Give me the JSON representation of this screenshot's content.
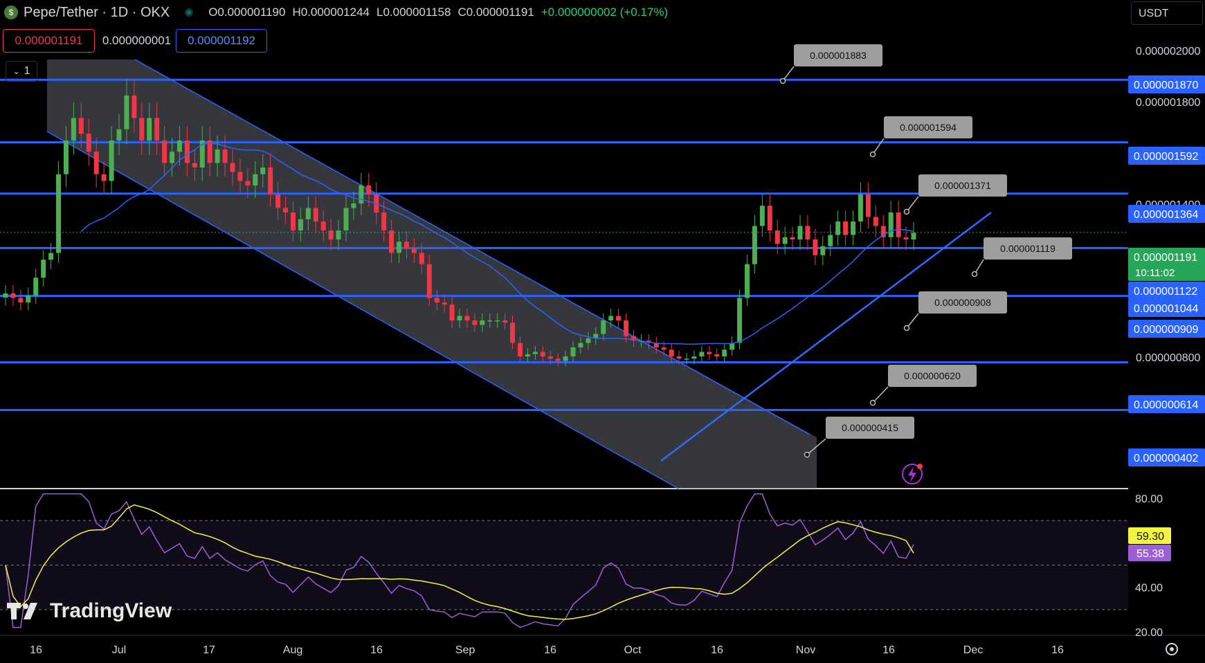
{
  "header": {
    "symbol_title": "Pepe/Tether · 1D · OKX",
    "coin_icon": "pepe-coin-icon",
    "open": "O0.000001190",
    "high": "H0.000001244",
    "low": "L0.000001158",
    "close": "C0.000001191",
    "change": "+0.000000002 (+0.17%)"
  },
  "trade": {
    "sell_price": "0.000001191",
    "spread": "0.000000001",
    "buy_price": "0.000001192"
  },
  "interval_toggle": "1",
  "currency_select": "USDT",
  "price_axis": {
    "ticks": [
      "0.000002000",
      "0.000001800",
      "0.000001400",
      "0.000000800"
    ],
    "level_badges": [
      "0.000001870",
      "0.000001592",
      "0.000001364",
      "0.000001122",
      "0.000001044",
      "0.000000909",
      "0.000000614",
      "0.000000402"
    ],
    "last_price": "0.000001191",
    "countdown": "10:11:02"
  },
  "callouts": [
    "0.000001883",
    "0.000001594",
    "0.000001371",
    "0.000001119",
    "0.000000908",
    "0.000000620",
    "0.000000415"
  ],
  "rsi_axis": {
    "ticks": [
      "80.00",
      "40.00",
      "20.00"
    ],
    "rsi_value": "59.30",
    "rsi_ma_value": "55.38"
  },
  "time_axis": [
    "16",
    "Jul",
    "17",
    "Aug",
    "16",
    "Sep",
    "16",
    "Oct",
    "16",
    "Nov",
    "16",
    "Dec",
    "16"
  ],
  "brand": "TradingView",
  "colors": {
    "bull": "#26a69a",
    "bull_candle": "#4caf50",
    "bear": "#f23645",
    "level_line": "#2962ff",
    "ma_line": "#2962ff",
    "rsi_line": "#9c5fd6",
    "rsi_ma_line": "#f4f442",
    "channel_fill": "#787b86",
    "callout_bg": "#9e9e9e"
  },
  "chart_data": {
    "type": "candlestick",
    "timeframe": "1D",
    "date_range": [
      "2024-06-04",
      "2024-11-20"
    ],
    "ylim": [
      3.5e-07,
      2.1e-06
    ],
    "horizontal_levels": [
      1.87e-06,
      1.592e-06,
      1.364e-06,
      1.122e-06,
      9.09e-07,
      6.14e-07,
      4.02e-07
    ],
    "descending_channel": true,
    "ascending_trendline": true,
    "closes": [
      9.2e-07,
      9e-07,
      8.8e-07,
      9.1e-07,
      9.9e-07,
      1.07e-06,
      1.1e-06,
      1.45e-06,
      1.6e-06,
      1.7e-06,
      1.63e-06,
      1.55e-06,
      1.45e-06,
      1.42e-06,
      1.6e-06,
      1.65e-06,
      1.8e-06,
      1.7e-06,
      1.6e-06,
      1.7e-06,
      1.6e-06,
      1.5e-06,
      1.55e-06,
      1.6e-06,
      1.5e-06,
      1.48e-06,
      1.6e-06,
      1.5e-06,
      1.56e-06,
      1.5e-06,
      1.46e-06,
      1.42e-06,
      1.4e-06,
      1.45e-06,
      1.48e-06,
      1.36e-06,
      1.3e-06,
      1.28e-06,
      1.2e-06,
      1.25e-06,
      1.3e-06,
      1.24e-06,
      1.2e-06,
      1.16e-06,
      1.2e-06,
      1.3e-06,
      1.32e-06,
      1.4e-06,
      1.36e-06,
      1.28e-06,
      1.2e-06,
      1.1e-06,
      1.15e-06,
      1.12e-06,
      1.1e-06,
      1.05e-06,
      9e-07,
      8.8e-07,
      8.7e-07,
      8e-07,
      8.2e-07,
      8e-07,
      7.8e-07,
      8e-07,
      8e-07,
      8e-07,
      7.9e-07,
      7e-07,
      6.4e-07,
      6.5e-07,
      6.6e-07,
      6.4e-07,
      6.3e-07,
      6.2e-07,
      6.4e-07,
      6.8e-07,
      7e-07,
      7.2e-07,
      7.4e-07,
      8e-07,
      8.2e-07,
      8e-07,
      7.3e-07,
      7.1e-07,
      7.1e-07,
      7e-07,
      6.8e-07,
      6.7e-07,
      6.4e-07,
      6.3e-07,
      6.3e-07,
      6.4e-07,
      6.6e-07,
      6.5e-07,
      6.4e-07,
      6.7e-07,
      7e-07,
      9e-07,
      1.05e-06,
      1.22e-06,
      1.31e-06,
      1.2e-06,
      1.14e-06,
      1.17e-06,
      1.16e-06,
      1.22e-06,
      1.16e-06,
      1.09e-06,
      1.13e-06,
      1.18e-06,
      1.24e-06,
      1.18e-06,
      1.24e-06,
      1.36e-06,
      1.26e-06,
      1.22e-06,
      1.17e-06,
      1.28e-06,
      1.17e-06,
      1.16e-06,
      1.19e-06
    ],
    "rsi": {
      "ylim": [
        20,
        80
      ],
      "bands": [
        70,
        50,
        30
      ],
      "last_rsi": 59.3,
      "last_ma": 55.38
    }
  }
}
